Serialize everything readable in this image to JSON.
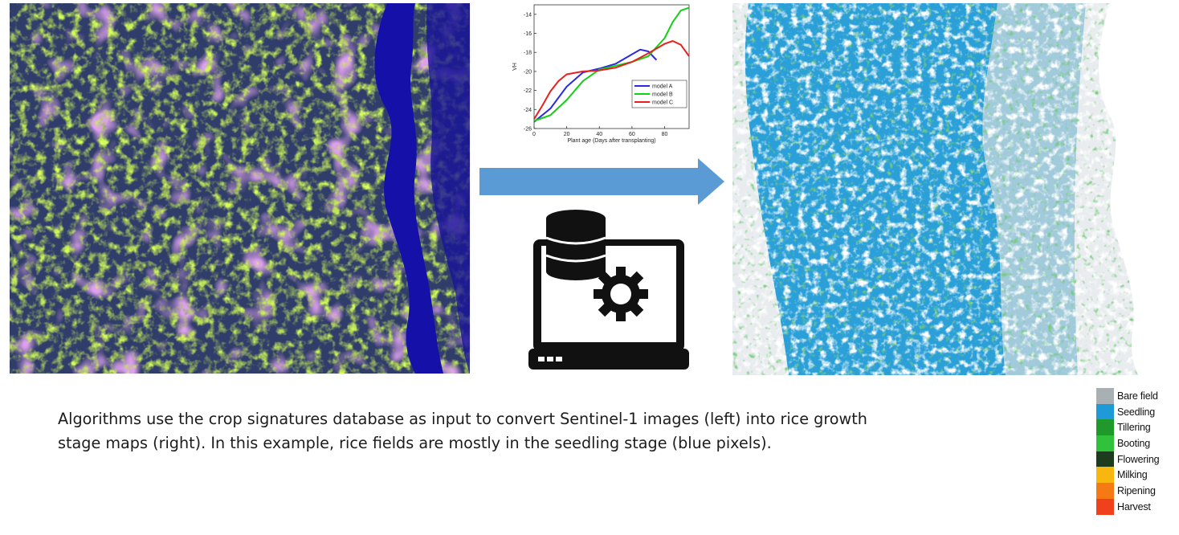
{
  "caption": {
    "line1": "Algorithms use the crop signatures database as input to convert Sentinel-1 images (left) into rice growth",
    "line2": "stage maps (right). In this example, rice fields are mostly in the seedling stage (blue pixels)."
  },
  "legend": [
    {
      "label": "Bare field",
      "color": "#a8b0b4"
    },
    {
      "label": "Seedling",
      "color": "#1e9ad6"
    },
    {
      "label": "Tillering",
      "color": "#1f9a2a"
    },
    {
      "label": "Booting",
      "color": "#2fc23a"
    },
    {
      "label": "Flowering",
      "color": "#1d3b1d"
    },
    {
      "label": "Milking",
      "color": "#f7b70f"
    },
    {
      "label": "Ripening",
      "color": "#f57a14"
    },
    {
      "label": "Harvest",
      "color": "#f0401c"
    }
  ],
  "chart_data": {
    "type": "line",
    "xlabel": "Plant age (Days after transplanting)",
    "ylabel": "VH",
    "xlim": [
      0,
      95
    ],
    "ylim": [
      -26,
      -13
    ],
    "xticks": [
      0,
      20,
      40,
      60,
      80
    ],
    "yticks": [
      -26,
      -24,
      -22,
      -20,
      -18,
      -16,
      -14
    ],
    "series": [
      {
        "name": "model A",
        "color": "#2a2ae0",
        "x": [
          0,
          10,
          20,
          30,
          40,
          50,
          60,
          65,
          70,
          75
        ],
        "y": [
          -25.3,
          -23.9,
          -21.6,
          -20.1,
          -19.7,
          -19.2,
          -18.2,
          -17.7,
          -17.9,
          -18.8
        ]
      },
      {
        "name": "model B",
        "color": "#12d012",
        "x": [
          0,
          10,
          20,
          30,
          40,
          50,
          60,
          70,
          80,
          85,
          90,
          95
        ],
        "y": [
          -25.2,
          -24.6,
          -23.0,
          -21.0,
          -19.8,
          -19.4,
          -19.0,
          -18.4,
          -16.5,
          -14.8,
          -13.6,
          -13.3
        ]
      },
      {
        "name": "model C",
        "color": "#e82020",
        "x": [
          0,
          5,
          10,
          15,
          20,
          30,
          40,
          50,
          60,
          70,
          80,
          85,
          90,
          95
        ],
        "y": [
          -25.0,
          -23.6,
          -22.1,
          -21.0,
          -20.3,
          -20.0,
          -19.9,
          -19.6,
          -19.0,
          -18.1,
          -17.1,
          -16.8,
          -17.2,
          -18.4
        ]
      }
    ]
  }
}
